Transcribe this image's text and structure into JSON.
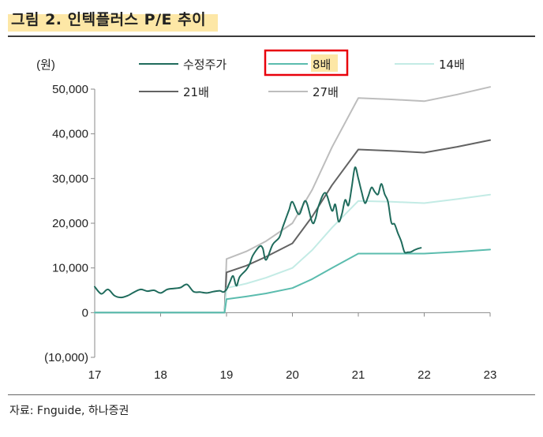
{
  "header": {
    "title": "그림 2. 인텍플러스 P/E 추이",
    "source": "자료: Fnguide, 하나증권"
  },
  "colors": {
    "title_highlight": "#fde7a6",
    "legend_box": "#e8000b",
    "legend_highlight": "#fde7a6"
  },
  "chart_data": {
    "type": "line",
    "ylabel": "(원)",
    "ylim": [
      -10000,
      50000
    ],
    "yticks": [
      -10000,
      0,
      10000,
      20000,
      30000,
      40000,
      50000
    ],
    "ytick_labels": [
      "(10,000)",
      "0",
      "10,000",
      "20,000",
      "30,000",
      "40,000",
      "50,000"
    ],
    "xlim": [
      17,
      23
    ],
    "xticks": [
      17,
      18,
      19,
      20,
      21,
      22,
      23
    ],
    "xtick_labels": [
      "17",
      "18",
      "19",
      "20",
      "21",
      "22",
      "23"
    ],
    "legend_position": "top",
    "grid": false,
    "series": [
      {
        "name": "수정주가",
        "color": "#1f6b5c",
        "width": 2.0,
        "x": [
          17.0,
          17.1,
          17.2,
          17.3,
          17.4,
          17.5,
          17.6,
          17.7,
          17.8,
          17.9,
          18.0,
          18.1,
          18.2,
          18.3,
          18.4,
          18.5,
          18.6,
          18.7,
          18.8,
          18.9,
          18.95,
          19.0,
          19.05,
          19.1,
          19.15,
          19.2,
          19.3,
          19.35,
          19.4,
          19.5,
          19.55,
          19.6,
          19.7,
          19.8,
          19.85,
          19.9,
          19.95,
          20.0,
          20.1,
          20.2,
          20.3,
          20.35,
          20.4,
          20.5,
          20.6,
          20.65,
          20.7,
          20.75,
          20.8,
          20.85,
          20.9,
          20.95,
          21.0,
          21.05,
          21.1,
          21.15,
          21.2,
          21.25,
          21.3,
          21.35,
          21.4,
          21.45,
          21.5,
          21.55,
          21.6,
          21.65,
          21.7,
          21.75,
          21.8,
          21.85,
          21.9,
          21.95
        ],
        "values": [
          5800,
          4200,
          5200,
          3800,
          3400,
          3800,
          4600,
          5200,
          4800,
          5000,
          4400,
          5200,
          5400,
          5600,
          6300,
          4700,
          4600,
          4400,
          4700,
          4900,
          4600,
          5200,
          6800,
          8200,
          6000,
          8000,
          9600,
          10800,
          12800,
          14800,
          14400,
          11800,
          15200,
          16800,
          19000,
          21000,
          23000,
          24800,
          22000,
          25000,
          20200,
          21000,
          24000,
          26800,
          22800,
          24200,
          20400,
          22000,
          25200,
          24000,
          28000,
          32500,
          30000,
          27000,
          24500,
          26000,
          28000,
          27000,
          26500,
          28800,
          26500,
          24800,
          20200,
          19800,
          17800,
          16000,
          13600,
          13500,
          13600,
          14000,
          14300,
          14500
        ]
      },
      {
        "name": "8배",
        "color": "#5bbcae",
        "width": 2.0,
        "x": [
          17.0,
          18.9,
          18.97,
          19.0,
          19.3,
          19.6,
          20.0,
          20.3,
          20.6,
          21.0,
          21.5,
          22.0,
          22.5,
          23.0
        ],
        "values": [
          0,
          0,
          0,
          3000,
          3600,
          4300,
          5500,
          7500,
          10000,
          13200,
          13200,
          13200,
          13600,
          14100
        ]
      },
      {
        "name": "14배",
        "color": "#c3ebe5",
        "width": 2.0,
        "x": [
          17.0,
          18.9,
          18.97,
          19.0,
          19.3,
          19.6,
          20.0,
          20.3,
          20.6,
          21.0,
          21.5,
          22.0,
          22.5,
          23.0
        ],
        "values": [
          0,
          0,
          0,
          5500,
          6500,
          7800,
          10000,
          14000,
          19000,
          25000,
          24800,
          24500,
          25400,
          26400
        ]
      },
      {
        "name": "21배",
        "color": "#636363",
        "width": 2.0,
        "x": [
          17.0,
          18.9,
          18.97,
          19.0,
          19.3,
          19.6,
          20.0,
          20.3,
          20.6,
          21.0,
          21.5,
          22.0,
          22.5,
          23.0
        ],
        "values": [
          0,
          0,
          0,
          9000,
          10500,
          12500,
          15500,
          21500,
          28500,
          36500,
          36200,
          35800,
          37100,
          38600
        ]
      },
      {
        "name": "27배",
        "color": "#bdbdbd",
        "width": 2.0,
        "x": [
          17.0,
          18.9,
          18.97,
          19.0,
          19.3,
          19.6,
          20.0,
          20.3,
          20.6,
          21.0,
          21.5,
          22.0,
          22.5,
          23.0
        ],
        "values": [
          0,
          0,
          0,
          12000,
          13700,
          16000,
          20000,
          27500,
          37000,
          48000,
          47700,
          47300,
          48800,
          50500
        ]
      }
    ]
  }
}
